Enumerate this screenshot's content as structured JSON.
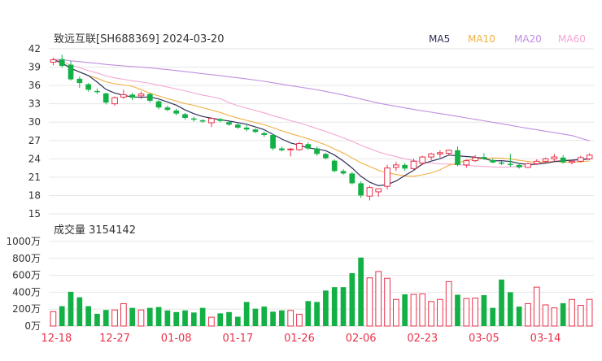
{
  "chart_data": [
    {
      "type": "candlestick",
      "title": "致远互联[SH688369] 2024-03-20",
      "legend": [
        {
          "label": "MA5",
          "color": "#2e2e5a"
        },
        {
          "label": "MA10",
          "color": "#f0b040"
        },
        {
          "label": "MA20",
          "color": "#c08ee0"
        },
        {
          "label": "MA60",
          "color": "#f3a6d4"
        }
      ],
      "legend_position": "top-right",
      "ylim": [
        15,
        42
      ],
      "yticks": [
        "42",
        "39",
        "36",
        "33",
        "30",
        "27",
        "24",
        "21",
        "18",
        "15"
      ],
      "grid": true,
      "colors": {
        "up": "#e8324a",
        "down": "#13b046"
      },
      "candles": [
        [
          39.8,
          40.5,
          39.3,
          40.2
        ],
        [
          40.3,
          41.0,
          38.9,
          39.2
        ],
        [
          39.4,
          40.0,
          36.8,
          37.0
        ],
        [
          37.1,
          37.5,
          35.6,
          36.4
        ],
        [
          36.2,
          36.4,
          35.0,
          35.3
        ],
        [
          35.1,
          35.5,
          34.6,
          34.9
        ],
        [
          34.7,
          34.8,
          32.9,
          33.2
        ],
        [
          33.0,
          34.2,
          32.7,
          34.0
        ],
        [
          34.1,
          35.3,
          33.8,
          34.5
        ],
        [
          34.5,
          34.8,
          33.6,
          34.0
        ],
        [
          34.3,
          35.0,
          33.8,
          34.6
        ],
        [
          34.6,
          34.8,
          33.2,
          33.5
        ],
        [
          33.4,
          33.6,
          32.1,
          32.4
        ],
        [
          32.4,
          32.7,
          31.8,
          32.0
        ],
        [
          31.9,
          32.2,
          31.1,
          31.4
        ],
        [
          31.3,
          31.5,
          30.4,
          30.7
        ],
        [
          30.6,
          30.9,
          30.1,
          30.4
        ],
        [
          30.3,
          30.5,
          29.9,
          30.1
        ],
        [
          29.9,
          30.8,
          29.2,
          30.6
        ],
        [
          30.5,
          30.7,
          30.0,
          30.2
        ],
        [
          30.0,
          30.2,
          29.4,
          29.6
        ],
        [
          29.6,
          29.8,
          28.9,
          29.1
        ],
        [
          29.1,
          29.5,
          28.5,
          28.8
        ],
        [
          28.8,
          29.0,
          28.2,
          28.4
        ],
        [
          28.2,
          28.5,
          27.6,
          27.9
        ],
        [
          27.9,
          28.1,
          25.4,
          25.7
        ],
        [
          25.7,
          26.0,
          25.2,
          25.4
        ],
        [
          25.5,
          25.8,
          24.4,
          25.6
        ],
        [
          25.5,
          26.8,
          25.3,
          26.5
        ],
        [
          26.4,
          26.7,
          25.5,
          25.7
        ],
        [
          25.7,
          26.0,
          24.5,
          24.8
        ],
        [
          24.8,
          25.0,
          23.9,
          24.1
        ],
        [
          23.7,
          23.9,
          21.8,
          22.0
        ],
        [
          22.0,
          22.3,
          21.4,
          21.6
        ],
        [
          21.6,
          21.9,
          19.8,
          20.0
        ],
        [
          20.0,
          20.3,
          17.6,
          18.0
        ],
        [
          17.9,
          19.6,
          17.2,
          19.3
        ],
        [
          18.6,
          19.2,
          17.8,
          19.1
        ],
        [
          19.5,
          23.0,
          19.0,
          22.5
        ],
        [
          22.6,
          23.5,
          22.0,
          23.0
        ],
        [
          23.0,
          23.3,
          22.0,
          22.4
        ],
        [
          22.4,
          24.0,
          22.0,
          23.6
        ],
        [
          23.3,
          24.5,
          23.0,
          24.3
        ],
        [
          24.3,
          25.0,
          23.8,
          24.8
        ],
        [
          24.8,
          25.4,
          24.2,
          25.0
        ],
        [
          24.9,
          25.5,
          24.6,
          25.4
        ],
        [
          25.4,
          26.0,
          22.8,
          23.0
        ],
        [
          23.0,
          23.9,
          22.5,
          23.7
        ],
        [
          23.7,
          24.6,
          23.5,
          24.2
        ],
        [
          24.3,
          24.9,
          23.8,
          24.0
        ],
        [
          23.8,
          24.0,
          23.3,
          23.4
        ],
        [
          23.4,
          23.6,
          23.0,
          23.2
        ],
        [
          23.2,
          24.8,
          22.7,
          23.0
        ],
        [
          23.0,
          23.3,
          22.4,
          22.6
        ],
        [
          22.6,
          23.4,
          22.5,
          23.2
        ],
        [
          23.2,
          23.9,
          23.0,
          23.6
        ],
        [
          23.6,
          24.2,
          23.3,
          24.0
        ],
        [
          24.0,
          24.8,
          23.6,
          24.3
        ],
        [
          24.2,
          24.6,
          23.2,
          23.4
        ],
        [
          23.4,
          23.9,
          23.1,
          23.6
        ],
        [
          23.6,
          24.5,
          23.4,
          24.2
        ],
        [
          24.0,
          24.9,
          23.8,
          24.6
        ]
      ]
    },
    {
      "type": "bar",
      "title": "成交量 3154142",
      "ylim": [
        0,
        1000
      ],
      "yticks": [
        "1000万",
        "800万",
        "600万",
        "400万",
        "200万",
        "0万"
      ],
      "ylabel_unit": "万",
      "xticks": [
        {
          "index": 0,
          "label": "12-18"
        },
        {
          "index": 7,
          "label": "12-27"
        },
        {
          "index": 14,
          "label": "01-08"
        },
        {
          "index": 21,
          "label": "01-17"
        },
        {
          "index": 28,
          "label": "01-26"
        },
        {
          "index": 35,
          "label": "02-06"
        },
        {
          "index": 42,
          "label": "02-23"
        },
        {
          "index": 49,
          "label": "03-05"
        },
        {
          "index": 56,
          "label": "03-14"
        }
      ],
      "values": [
        170,
        235,
        405,
        340,
        235,
        145,
        190,
        190,
        265,
        215,
        190,
        215,
        225,
        185,
        165,
        185,
        160,
        215,
        105,
        150,
        165,
        110,
        285,
        205,
        230,
        170,
        185,
        185,
        140,
        295,
        285,
        420,
        460,
        460,
        625,
        810,
        570,
        645,
        565,
        315,
        375,
        375,
        380,
        290,
        315,
        525,
        370,
        325,
        330,
        365,
        215,
        550,
        400,
        230,
        265,
        460,
        250,
        215,
        270,
        315,
        245,
        315
      ],
      "grid": true
    }
  ]
}
